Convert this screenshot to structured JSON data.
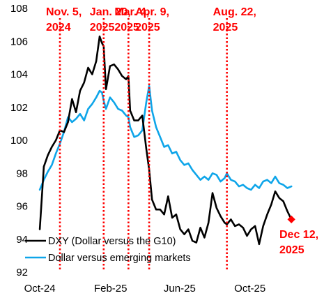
{
  "chart_data": {
    "type": "line",
    "title": "",
    "xlabel": "",
    "ylabel": "",
    "ylim": [
      92,
      108
    ],
    "yticks": [
      92,
      94,
      96,
      98,
      100,
      102,
      104,
      106,
      108
    ],
    "xlim": [
      "2024-09-20",
      "2026-01-05"
    ],
    "xticks": [
      {
        "date": "2024-10-01",
        "label": "Oct-24"
      },
      {
        "date": "2025-02-01",
        "label": "Feb-25"
      },
      {
        "date": "2025-06-01",
        "label": "Jun-25"
      },
      {
        "date": "2025-10-01",
        "label": "Oct-25"
      }
    ],
    "grid": false,
    "legend_position": "bottom-left",
    "series": [
      {
        "name": "DXY (Dollar versus the G10)",
        "color": "#000000",
        "points": [
          [
            "2024-10-01",
            94.6
          ],
          [
            "2024-10-08",
            98.4
          ],
          [
            "2024-10-15",
            99.1
          ],
          [
            "2024-10-22",
            99.6
          ],
          [
            "2024-10-29",
            100.0
          ],
          [
            "2024-11-05",
            100.6
          ],
          [
            "2024-11-12",
            100.5
          ],
          [
            "2024-11-19",
            101.1
          ],
          [
            "2024-11-26",
            102.5
          ],
          [
            "2024-12-03",
            101.7
          ],
          [
            "2024-12-10",
            103.0
          ],
          [
            "2024-12-17",
            103.5
          ],
          [
            "2024-12-24",
            104.4
          ],
          [
            "2024-12-31",
            104.0
          ],
          [
            "2025-01-07",
            104.8
          ],
          [
            "2025-01-13",
            106.3
          ],
          [
            "2025-01-17",
            105.9
          ],
          [
            "2025-01-20",
            105.7
          ],
          [
            "2025-01-24",
            103.1
          ],
          [
            "2025-01-31",
            104.5
          ],
          [
            "2025-02-07",
            104.6
          ],
          [
            "2025-02-14",
            104.3
          ],
          [
            "2025-02-21",
            103.9
          ],
          [
            "2025-02-28",
            103.7
          ],
          [
            "2025-03-04",
            103.9
          ],
          [
            "2025-03-07",
            101.8
          ],
          [
            "2025-03-14",
            101.2
          ],
          [
            "2025-03-21",
            101.2
          ],
          [
            "2025-03-28",
            101.5
          ],
          [
            "2025-04-04",
            99.5
          ],
          [
            "2025-04-09",
            98.2
          ],
          [
            "2025-04-14",
            96.4
          ],
          [
            "2025-04-21",
            95.8
          ],
          [
            "2025-04-28",
            95.8
          ],
          [
            "2025-05-05",
            95.5
          ],
          [
            "2025-05-12",
            96.6
          ],
          [
            "2025-05-19",
            95.3
          ],
          [
            "2025-05-26",
            95.5
          ],
          [
            "2025-06-02",
            94.6
          ],
          [
            "2025-06-09",
            94.3
          ],
          [
            "2025-06-16",
            94.6
          ],
          [
            "2025-06-23",
            93.9
          ],
          [
            "2025-06-30",
            93.8
          ],
          [
            "2025-07-07",
            94.7
          ],
          [
            "2025-07-14",
            94.1
          ],
          [
            "2025-07-21",
            95.0
          ],
          [
            "2025-07-28",
            96.8
          ],
          [
            "2025-08-04",
            95.9
          ],
          [
            "2025-08-11",
            95.4
          ],
          [
            "2025-08-18",
            95.0
          ],
          [
            "2025-08-22",
            94.9
          ],
          [
            "2025-08-29",
            95.2
          ],
          [
            "2025-09-05",
            94.8
          ],
          [
            "2025-09-12",
            94.9
          ],
          [
            "2025-09-19",
            94.7
          ],
          [
            "2025-09-26",
            94.2
          ],
          [
            "2025-10-03",
            94.6
          ],
          [
            "2025-10-10",
            94.8
          ],
          [
            "2025-10-17",
            93.7
          ],
          [
            "2025-10-24",
            94.8
          ],
          [
            "2025-10-31",
            95.5
          ],
          [
            "2025-11-07",
            96.1
          ],
          [
            "2025-11-14",
            96.9
          ],
          [
            "2025-11-21",
            96.5
          ],
          [
            "2025-11-28",
            96.3
          ],
          [
            "2025-12-05",
            95.7
          ],
          [
            "2025-12-12",
            95.2
          ]
        ]
      },
      {
        "name": "Dollar versus emerging markets",
        "color": "#0ea5e9",
        "points": [
          [
            "2024-10-01",
            97.0
          ],
          [
            "2024-10-08",
            97.6
          ],
          [
            "2024-10-15",
            98.1
          ],
          [
            "2024-10-22",
            98.5
          ],
          [
            "2024-10-29",
            99.2
          ],
          [
            "2024-11-05",
            99.8
          ],
          [
            "2024-11-12",
            100.5
          ],
          [
            "2024-11-19",
            101.4
          ],
          [
            "2024-11-26",
            101.1
          ],
          [
            "2024-12-03",
            101.3
          ],
          [
            "2024-12-10",
            101.6
          ],
          [
            "2024-12-17",
            101.2
          ],
          [
            "2024-12-24",
            101.9
          ],
          [
            "2024-12-31",
            102.2
          ],
          [
            "2025-01-07",
            102.6
          ],
          [
            "2025-01-13",
            103.0
          ],
          [
            "2025-01-17",
            102.9
          ],
          [
            "2025-01-20",
            102.4
          ],
          [
            "2025-01-24",
            101.9
          ],
          [
            "2025-01-31",
            102.6
          ],
          [
            "2025-02-07",
            102.3
          ],
          [
            "2025-02-14",
            101.9
          ],
          [
            "2025-02-21",
            101.8
          ],
          [
            "2025-02-28",
            101.5
          ],
          [
            "2025-03-04",
            101.4
          ],
          [
            "2025-03-07",
            100.8
          ],
          [
            "2025-03-14",
            100.2
          ],
          [
            "2025-03-21",
            100.3
          ],
          [
            "2025-03-28",
            100.6
          ],
          [
            "2025-04-04",
            102.3
          ],
          [
            "2025-04-09",
            103.3
          ],
          [
            "2025-04-14",
            101.8
          ],
          [
            "2025-04-21",
            100.8
          ],
          [
            "2025-04-28",
            100.2
          ],
          [
            "2025-05-05",
            99.6
          ],
          [
            "2025-05-12",
            99.7
          ],
          [
            "2025-05-19",
            99.2
          ],
          [
            "2025-05-26",
            99.3
          ],
          [
            "2025-06-02",
            98.8
          ],
          [
            "2025-06-09",
            98.5
          ],
          [
            "2025-06-16",
            98.6
          ],
          [
            "2025-06-23",
            98.2
          ],
          [
            "2025-06-30",
            97.9
          ],
          [
            "2025-07-07",
            97.6
          ],
          [
            "2025-07-14",
            97.8
          ],
          [
            "2025-07-21",
            97.6
          ],
          [
            "2025-07-28",
            98.0
          ],
          [
            "2025-08-04",
            97.9
          ],
          [
            "2025-08-11",
            97.5
          ],
          [
            "2025-08-18",
            97.7
          ],
          [
            "2025-08-22",
            98.0
          ],
          [
            "2025-08-29",
            97.6
          ],
          [
            "2025-09-05",
            97.5
          ],
          [
            "2025-09-12",
            97.2
          ],
          [
            "2025-09-19",
            97.3
          ],
          [
            "2025-09-26",
            97.1
          ],
          [
            "2025-10-03",
            97.0
          ],
          [
            "2025-10-10",
            97.3
          ],
          [
            "2025-10-17",
            97.1
          ],
          [
            "2025-10-24",
            97.5
          ],
          [
            "2025-10-31",
            97.6
          ],
          [
            "2025-11-07",
            97.4
          ],
          [
            "2025-11-14",
            97.8
          ],
          [
            "2025-11-21",
            97.4
          ],
          [
            "2025-11-28",
            97.3
          ],
          [
            "2025-12-05",
            97.1
          ],
          [
            "2025-12-12",
            97.2
          ]
        ]
      }
    ],
    "events": [
      {
        "date": "2024-11-05",
        "label": [
          "Nov. 5,",
          "2024"
        ]
      },
      {
        "date": "2025-01-20",
        "label": [
          "Jan. 20,",
          "2025"
        ]
      },
      {
        "date": "2025-03-04",
        "label": [
          "Mar. 4,",
          "2025"
        ]
      },
      {
        "date": "2025-04-09",
        "label": [
          "Apr. 9,",
          "2025"
        ]
      },
      {
        "date": "2025-08-22",
        "label": [
          "Aug. 22,",
          "2025"
        ]
      }
    ],
    "event_color": "#ff0000",
    "endpoint": {
      "date": "2025-12-12",
      "value": 95.2,
      "color": "#ff0000",
      "label": [
        "Dec 12,",
        "2025"
      ]
    }
  }
}
